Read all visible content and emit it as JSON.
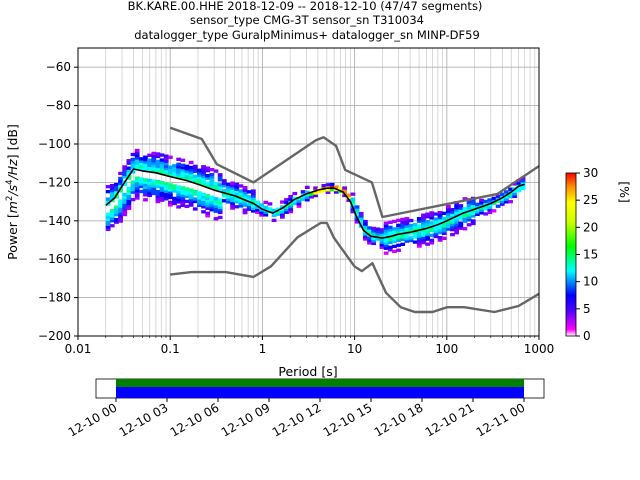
{
  "title_lines": [
    "BK.KARE.00.HHE   2018-12-09 -- 2018-12-10  (47/47 segments)",
    "sensor_type CMG-3T sensor_sn T310034",
    "datalogger_type GuralpMinimus+ datalogger_sn MINP-DF59"
  ],
  "colorbar": {
    "label": "[%]",
    "ticks": [
      "0",
      "5",
      "10",
      "15",
      "20",
      "25",
      "30"
    ],
    "range": [
      0,
      30
    ]
  },
  "timeline": {
    "ticks": [
      "12-10 00",
      "12-10 03",
      "12-10 06",
      "12-10 09",
      "12-10 12",
      "12-10 15",
      "12-10 18",
      "12-10 21",
      "12-11 00"
    ],
    "colors": {
      "top": "#008000",
      "bottom": "#0000ff"
    }
  },
  "chart_data": {
    "type": "line",
    "title": "BK.KARE.00.HHE   2018-12-09 -- 2018-12-10  (47/47 segments)",
    "xlabel": "Period [s]",
    "ylabel": "Power [m²/s⁴/Hz] [dB]",
    "ylabel_parts": {
      "pre": "Power [",
      "m": "m",
      "m_sup": "2",
      "s": "/s",
      "s_sup": "4",
      "post": "/Hz] [dB]"
    },
    "x_scale": "log",
    "xlim": [
      0.01,
      1000
    ],
    "ylim": [
      -200,
      -50
    ],
    "x_ticks": [
      "0.01",
      "0.1",
      "1",
      "10",
      "100",
      "1000"
    ],
    "y_ticks": [
      "-200",
      "-180",
      "-160",
      "-140",
      "-120",
      "-100",
      "-80",
      "-60"
    ],
    "grid": true,
    "series": [
      {
        "role": "mean",
        "color": "#000000",
        "x": [
          0.02,
          0.025,
          0.03,
          0.04,
          0.05,
          0.07,
          0.1,
          0.15,
          0.2,
          0.3,
          0.5,
          0.8,
          1.0,
          1.3,
          1.7,
          2.2,
          3.0,
          4.0,
          5.0,
          6.0,
          7.5,
          9.0,
          10.5,
          12.5,
          15.0,
          20.0,
          25.0,
          30.0,
          40.0,
          60.0,
          80.0,
          100.0,
          150.0,
          200.0,
          300.0,
          400.0,
          500.0,
          600.0,
          700.0
        ],
        "y": [
          -132,
          -128,
          -122,
          -113,
          -114,
          -115,
          -117,
          -119,
          -121,
          -124,
          -127,
          -131,
          -134,
          -136,
          -133,
          -129,
          -126,
          -124,
          -123,
          -123,
          -125,
          -130,
          -138,
          -145,
          -148,
          -149,
          -148,
          -147,
          -146,
          -144,
          -142,
          -140,
          -136,
          -134,
          -131,
          -128,
          -125,
          -122,
          -121
        ]
      },
      {
        "role": "noise-model-high",
        "color": "#666666",
        "x": [
          0.1,
          0.22,
          0.32,
          0.8,
          3.8,
          4.6,
          6.3,
          7.9,
          15.4,
          20.0,
          354.8,
          1000.0
        ],
        "y": [
          -91.5,
          -97.4,
          -110.5,
          -120.0,
          -98.0,
          -96.5,
          -101.0,
          -113.5,
          -120.0,
          -138.0,
          -126.0,
          -111.5
        ]
      },
      {
        "role": "noise-model-low",
        "color": "#666666",
        "x": [
          0.1,
          0.17,
          0.4,
          0.8,
          1.24,
          2.4,
          4.3,
          5.0,
          6.0,
          10.0,
          12.0,
          15.6,
          21.9,
          31.6,
          45.0,
          70.0,
          101.0,
          154.0,
          328.0,
          600.0,
          1000.0
        ],
        "y": [
          -168.0,
          -166.7,
          -166.7,
          -169.2,
          -163.7,
          -148.6,
          -141.1,
          -141.1,
          -149.0,
          -163.8,
          -166.2,
          -162.1,
          -177.5,
          -185.0,
          -187.5,
          -187.5,
          -185.0,
          -185.0,
          -187.5,
          -184.4,
          -178.0
        ]
      }
    ]
  }
}
